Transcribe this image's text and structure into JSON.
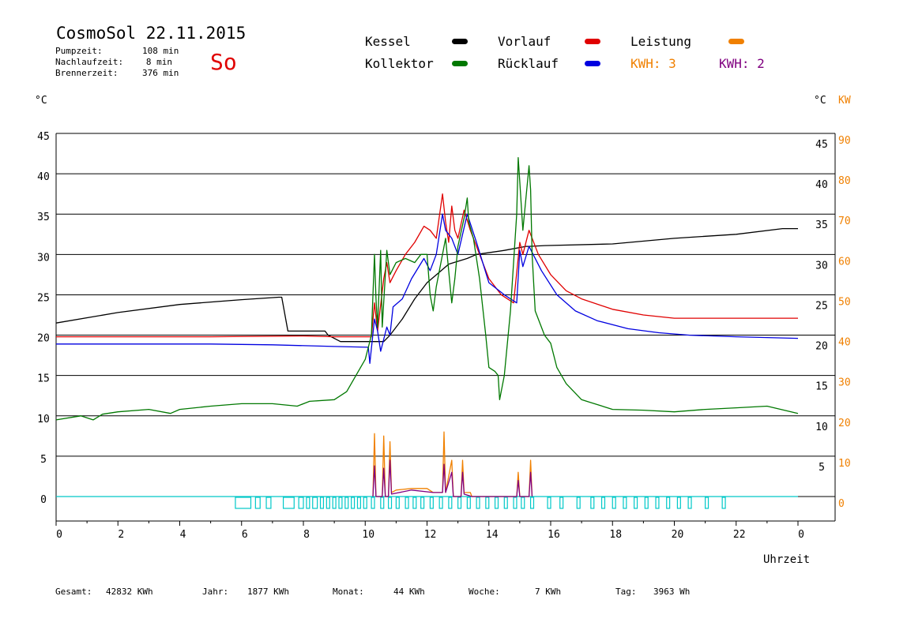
{
  "header": {
    "title": "CosmoSol 22.11.2015",
    "day": "So",
    "stats": [
      {
        "label": "Pumpzeit:",
        "value": "108 min"
      },
      {
        "label": "Nachlaufzeit:",
        "value": "8 min"
      },
      {
        "label": "Brennerzeit:",
        "value": "376 min"
      }
    ]
  },
  "legend": {
    "kessel": {
      "label": "Kessel",
      "color": "#000000"
    },
    "vorlauf": {
      "label": "Vorlauf",
      "color": "#e00000"
    },
    "leistung": {
      "label": "Leistung",
      "color": "#f08000"
    },
    "kollektor": {
      "label": "Kollektor",
      "color": "#007800"
    },
    "ruecklauf": {
      "label": "Rücklauf",
      "color": "#0000e0"
    },
    "kwh1": {
      "label": "KWH: 3",
      "color": "#f08000"
    },
    "kwh2": {
      "label": "KWH: 2",
      "color": "#800080"
    }
  },
  "axes": {
    "left_unit": "°C",
    "right_unit": "°C",
    "right_unit2": "KW",
    "xlabel": "Uhrzeit"
  },
  "footer": {
    "gesamt_label": "Gesamt:",
    "gesamt": "42832 KWh",
    "jahr_label": "Jahr:",
    "jahr": "1877 KWh",
    "monat_label": "Monat:",
    "monat": "44 KWh",
    "woche_label": "Woche:",
    "woche": "7 KWh",
    "tag_label": "Tag:",
    "tag": "3963 Wh"
  },
  "chart_data": {
    "type": "line",
    "xlim": [
      0,
      24
    ],
    "ylim": [
      0,
      45
    ],
    "y2lim": [
      0,
      90
    ],
    "x_ticks": [
      "0",
      "2",
      "4",
      "6",
      "8",
      "10",
      "12",
      "14",
      "16",
      "18",
      "20",
      "22",
      "0"
    ],
    "y_ticks": [
      "0",
      "5",
      "10",
      "15",
      "20",
      "25",
      "30",
      "35",
      "40",
      "45"
    ],
    "y2_ticks": [
      "0",
      "10",
      "20",
      "30",
      "40",
      "50",
      "60",
      "70",
      "80",
      "90"
    ],
    "grid": true,
    "series": [
      {
        "name": "Kessel",
        "color": "#000000",
        "points": [
          [
            0,
            21.5
          ],
          [
            2,
            22.8
          ],
          [
            4,
            23.8
          ],
          [
            6,
            24.4
          ],
          [
            7.2,
            24.7
          ],
          [
            7.3,
            24.7
          ],
          [
            7.5,
            20.5
          ],
          [
            8.7,
            20.5
          ],
          [
            8.8,
            20
          ],
          [
            9.2,
            19.2
          ],
          [
            10.6,
            19.2
          ],
          [
            10.8,
            20
          ],
          [
            11.2,
            22
          ],
          [
            11.6,
            24.5
          ],
          [
            12,
            26.5
          ],
          [
            12.4,
            27.8
          ],
          [
            12.7,
            28.8
          ],
          [
            13.3,
            29.5
          ],
          [
            13.6,
            30
          ],
          [
            14.5,
            30.5
          ],
          [
            15.2,
            31
          ],
          [
            15.3,
            31
          ],
          [
            15.8,
            31.1
          ],
          [
            18,
            31.3
          ],
          [
            20,
            32
          ],
          [
            22,
            32.5
          ],
          [
            23.5,
            33.2
          ],
          [
            24,
            33.2
          ]
        ]
      },
      {
        "name": "Vorlauf",
        "color": "#e00000",
        "points": [
          [
            0,
            19.8
          ],
          [
            5,
            19.8
          ],
          [
            8,
            19.9
          ],
          [
            9,
            19.8
          ],
          [
            10.2,
            19.8
          ],
          [
            10.3,
            24
          ],
          [
            10.4,
            20.5
          ],
          [
            10.6,
            27
          ],
          [
            10.7,
            29
          ],
          [
            10.8,
            26.5
          ],
          [
            11,
            28
          ],
          [
            11.3,
            30
          ],
          [
            11.6,
            31.5
          ],
          [
            11.9,
            33.5
          ],
          [
            12.1,
            33
          ],
          [
            12.3,
            32
          ],
          [
            12.5,
            37.5
          ],
          [
            12.6,
            34
          ],
          [
            12.7,
            31.5
          ],
          [
            12.8,
            36
          ],
          [
            12.9,
            33
          ],
          [
            13,
            32
          ],
          [
            13.2,
            35.5
          ],
          [
            13.4,
            33
          ],
          [
            13.7,
            30
          ],
          [
            14,
            27
          ],
          [
            14.4,
            25
          ],
          [
            14.8,
            24
          ],
          [
            15,
            31.5
          ],
          [
            15.1,
            30
          ],
          [
            15.3,
            33
          ],
          [
            15.6,
            30
          ],
          [
            16,
            27.5
          ],
          [
            16.5,
            25.5
          ],
          [
            17,
            24.5
          ],
          [
            18,
            23.2
          ],
          [
            19,
            22.5
          ],
          [
            20,
            22.1
          ],
          [
            21,
            22.1
          ],
          [
            22,
            22.1
          ],
          [
            23,
            22.1
          ],
          [
            24,
            22.1
          ]
        ]
      },
      {
        "name": "Rücklauf",
        "color": "#0000e0",
        "points": [
          [
            0,
            18.9
          ],
          [
            5,
            18.9
          ],
          [
            7,
            18.8
          ],
          [
            9,
            18.6
          ],
          [
            10.1,
            18.5
          ],
          [
            10.15,
            16.5
          ],
          [
            10.3,
            22
          ],
          [
            10.4,
            20.5
          ],
          [
            10.5,
            18
          ],
          [
            10.7,
            21
          ],
          [
            10.8,
            20
          ],
          [
            10.9,
            23.5
          ],
          [
            11.2,
            24.5
          ],
          [
            11.5,
            27
          ],
          [
            11.9,
            29.5
          ],
          [
            12.1,
            28
          ],
          [
            12.3,
            30
          ],
          [
            12.5,
            35
          ],
          [
            12.6,
            33
          ],
          [
            12.8,
            32
          ],
          [
            13,
            30
          ],
          [
            13.3,
            35
          ],
          [
            13.6,
            31.5
          ],
          [
            14,
            26.5
          ],
          [
            14.5,
            25
          ],
          [
            14.9,
            24
          ],
          [
            15,
            30.5
          ],
          [
            15.1,
            28.5
          ],
          [
            15.3,
            31
          ],
          [
            15.7,
            28
          ],
          [
            16.2,
            25
          ],
          [
            16.8,
            23
          ],
          [
            17.5,
            21.8
          ],
          [
            18.5,
            20.8
          ],
          [
            19.5,
            20.3
          ],
          [
            20.5,
            20
          ],
          [
            22,
            19.8
          ],
          [
            24,
            19.6
          ]
        ]
      },
      {
        "name": "Kollektor",
        "color": "#007800",
        "points": [
          [
            0,
            9.5
          ],
          [
            0.8,
            10
          ],
          [
            1.2,
            9.5
          ],
          [
            1.5,
            10.2
          ],
          [
            2,
            10.5
          ],
          [
            3,
            10.8
          ],
          [
            3.7,
            10.3
          ],
          [
            4,
            10.8
          ],
          [
            5,
            11.2
          ],
          [
            6,
            11.5
          ],
          [
            7,
            11.5
          ],
          [
            7.8,
            11.2
          ],
          [
            8.2,
            11.8
          ],
          [
            9,
            12
          ],
          [
            9.4,
            13
          ],
          [
            9.7,
            15
          ],
          [
            10,
            17
          ],
          [
            10.2,
            20
          ],
          [
            10.3,
            30
          ],
          [
            10.35,
            24.5
          ],
          [
            10.4,
            21
          ],
          [
            10.5,
            30.5
          ],
          [
            10.55,
            21
          ],
          [
            10.7,
            30.5
          ],
          [
            10.8,
            27.5
          ],
          [
            11,
            29
          ],
          [
            11.3,
            29.5
          ],
          [
            11.6,
            29
          ],
          [
            11.8,
            30
          ],
          [
            12,
            30
          ],
          [
            12.1,
            25
          ],
          [
            12.2,
            23
          ],
          [
            12.3,
            26
          ],
          [
            12.5,
            30
          ],
          [
            12.6,
            32
          ],
          [
            12.7,
            28
          ],
          [
            12.8,
            24
          ],
          [
            12.9,
            27
          ],
          [
            13,
            31
          ],
          [
            13.2,
            34.5
          ],
          [
            13.3,
            37
          ],
          [
            13.35,
            34
          ],
          [
            13.5,
            32
          ],
          [
            13.7,
            27
          ],
          [
            13.9,
            20
          ],
          [
            14,
            16
          ],
          [
            14.2,
            15.5
          ],
          [
            14.3,
            15
          ],
          [
            14.35,
            12
          ],
          [
            14.5,
            15
          ],
          [
            14.7,
            23
          ],
          [
            14.9,
            35
          ],
          [
            14.95,
            42
          ],
          [
            15,
            39
          ],
          [
            15.1,
            33
          ],
          [
            15.2,
            37
          ],
          [
            15.3,
            41
          ],
          [
            15.35,
            38
          ],
          [
            15.4,
            30
          ],
          [
            15.5,
            23
          ],
          [
            15.8,
            20
          ],
          [
            16,
            19
          ],
          [
            16.2,
            16
          ],
          [
            16.5,
            14
          ],
          [
            17,
            12
          ],
          [
            18,
            10.8
          ],
          [
            19,
            10.7
          ],
          [
            20,
            10.5
          ],
          [
            21,
            10.8
          ],
          [
            22,
            11
          ],
          [
            23,
            11.2
          ],
          [
            24,
            10.3
          ]
        ]
      },
      {
        "name": "Leistung",
        "color": "#f08000",
        "points": [
          [
            10.25,
            0
          ],
          [
            10.3,
            7.8
          ],
          [
            10.35,
            0
          ],
          [
            10.55,
            0
          ],
          [
            10.6,
            7.5
          ],
          [
            10.65,
            0
          ],
          [
            10.75,
            0
          ],
          [
            10.8,
            6.8
          ],
          [
            10.85,
            0.5
          ],
          [
            11,
            0.8
          ],
          [
            11.5,
            1
          ],
          [
            12,
            1
          ],
          [
            12.2,
            0.5
          ],
          [
            12.5,
            0.5
          ],
          [
            12.55,
            8
          ],
          [
            12.6,
            0.5
          ],
          [
            12.8,
            4.5
          ],
          [
            12.85,
            0
          ],
          [
            13.1,
            0
          ],
          [
            13.15,
            4.5
          ],
          [
            13.2,
            0.5
          ],
          [
            13.4,
            0.5
          ],
          [
            13.45,
            0
          ],
          [
            14.9,
            0
          ],
          [
            14.95,
            3
          ],
          [
            15,
            0
          ],
          [
            15.3,
            0
          ],
          [
            15.35,
            4.5
          ],
          [
            15.4,
            0
          ]
        ]
      },
      {
        "name": "",
        "color": "#800080",
        "points": [
          [
            10.25,
            0
          ],
          [
            10.3,
            3.8
          ],
          [
            10.35,
            0
          ],
          [
            10.55,
            0
          ],
          [
            10.6,
            3.5
          ],
          [
            10.65,
            0
          ],
          [
            10.75,
            0
          ],
          [
            10.8,
            4.5
          ],
          [
            10.85,
            0.3
          ],
          [
            11.5,
            0.8
          ],
          [
            12.2,
            0.5
          ],
          [
            12.5,
            0.5
          ],
          [
            12.55,
            4
          ],
          [
            12.6,
            0.5
          ],
          [
            12.8,
            3
          ],
          [
            12.85,
            0
          ],
          [
            13.1,
            0
          ],
          [
            13.15,
            3
          ],
          [
            13.2,
            0.3
          ],
          [
            13.45,
            0
          ],
          [
            14.9,
            0
          ],
          [
            14.95,
            2
          ],
          [
            15,
            0
          ],
          [
            15.3,
            0
          ],
          [
            15.35,
            3
          ],
          [
            15.4,
            0
          ]
        ]
      }
    ],
    "pump_pulses": [
      [
        5.8,
        6.3
      ],
      [
        6.45,
        6.6
      ],
      [
        6.8,
        6.95
      ],
      [
        7.35,
        7.7
      ],
      [
        7.85,
        8.0
      ],
      [
        8.1,
        8.2
      ],
      [
        8.3,
        8.45
      ],
      [
        8.55,
        8.65
      ],
      [
        8.75,
        8.85
      ],
      [
        8.95,
        9.05
      ],
      [
        9.15,
        9.25
      ],
      [
        9.35,
        9.45
      ],
      [
        9.55,
        9.65
      ],
      [
        9.75,
        9.85
      ],
      [
        9.95,
        10.05
      ],
      [
        10.2,
        10.3
      ],
      [
        10.5,
        10.6
      ],
      [
        10.75,
        10.85
      ],
      [
        11.0,
        11.1
      ],
      [
        11.3,
        11.4
      ],
      [
        11.55,
        11.65
      ],
      [
        11.8,
        11.9
      ],
      [
        12.1,
        12.2
      ],
      [
        12.4,
        12.5
      ],
      [
        12.7,
        12.8
      ],
      [
        13.0,
        13.1
      ],
      [
        13.3,
        13.4
      ],
      [
        13.6,
        13.7
      ],
      [
        13.9,
        14.0
      ],
      [
        14.2,
        14.3
      ],
      [
        14.5,
        14.6
      ],
      [
        14.8,
        14.9
      ],
      [
        15.05,
        15.15
      ],
      [
        15.35,
        15.45
      ],
      [
        15.9,
        16.0
      ],
      [
        16.3,
        16.4
      ],
      [
        16.85,
        16.95
      ],
      [
        17.3,
        17.4
      ],
      [
        17.65,
        17.75
      ],
      [
        18.0,
        18.1
      ],
      [
        18.35,
        18.45
      ],
      [
        18.7,
        18.8
      ],
      [
        19.05,
        19.15
      ],
      [
        19.4,
        19.5
      ],
      [
        19.75,
        19.85
      ],
      [
        20.1,
        20.2
      ],
      [
        20.45,
        20.55
      ],
      [
        21.0,
        21.1
      ],
      [
        21.55,
        21.65
      ]
    ]
  }
}
